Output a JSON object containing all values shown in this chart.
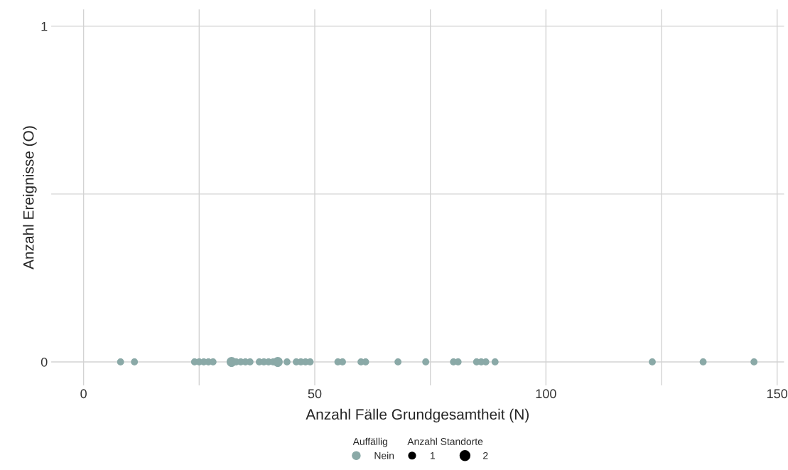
{
  "chart_data": {
    "type": "bubble",
    "xlabel": "Anzahl Fälle Grundgesamtheit (N)",
    "ylabel": "Anzahl Ereignisse (O)",
    "x": [
      8,
      11,
      24,
      25,
      26,
      27,
      28,
      32,
      33,
      34,
      35,
      36,
      38,
      39,
      40,
      41,
      42,
      44,
      46,
      47,
      48,
      49,
      55,
      56,
      60,
      61,
      68,
      74,
      80,
      81,
      85,
      86,
      87,
      89,
      123,
      134,
      145
    ],
    "series": [
      {
        "name": "Nein",
        "color": "#8aa9a7",
        "values": [
          0,
          0,
          0,
          0,
          0,
          0,
          0,
          0,
          0,
          0,
          0,
          0,
          0,
          0,
          0,
          0,
          0,
          0,
          0,
          0,
          0,
          0,
          0,
          0,
          0,
          0,
          0,
          0,
          0,
          0,
          0,
          0,
          0,
          0,
          0,
          0,
          0
        ],
        "sizes": [
          1,
          1,
          1,
          1,
          1,
          1,
          1,
          2,
          1,
          1,
          1,
          1,
          1,
          1,
          1,
          1,
          2,
          1,
          1,
          1,
          1,
          1,
          1,
          1,
          1,
          1,
          1,
          1,
          1,
          1,
          1,
          1,
          1,
          1,
          1,
          1,
          1
        ]
      }
    ],
    "size_legend": [
      1,
      2
    ],
    "legend_title": "Auffällig",
    "annotations": [
      "Anzahl Standorte"
    ],
    "xlim": [
      -7,
      151.5
    ],
    "xticks": [
      0,
      {
        "value": 25,
        "label": null
      },
      50,
      {
        "value": 75,
        "label": null
      },
      100,
      {
        "value": 125,
        "label": null
      },
      150
    ],
    "ylim": [
      -0.07,
      1.05
    ],
    "yticks": [
      0,
      {
        "value": 0.5,
        "label": null
      },
      1
    ],
    "grid": true,
    "legend": "bottom"
  }
}
